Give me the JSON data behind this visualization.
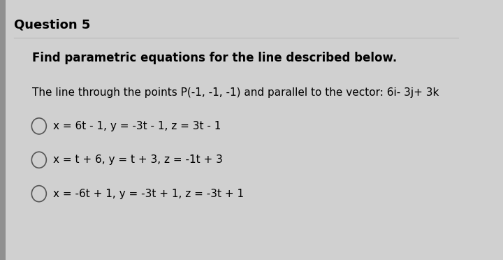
{
  "title": "Question 5",
  "bold_text": "Find parametric equations for the line described below.",
  "description": "The line through the points P(-1, -1, -1) and parallel to the vector: 6i- 3j+ 3k",
  "options": [
    "x = 6t - 1, y = -3t - 1, z = 3t - 1",
    "x = t + 6, y = t + 3, z = -1t + 3",
    "x = -6t + 1, y = -3t + 1, z = -3t + 1"
  ],
  "bg_color": "#d0d0d0",
  "box_color": "#efefef",
  "title_color": "#000000",
  "text_color": "#000000",
  "left_bar_color": "#909090",
  "line_color": "#bbbbbb",
  "title_fontsize": 13,
  "bold_fontsize": 12,
  "desc_fontsize": 11,
  "option_fontsize": 11
}
